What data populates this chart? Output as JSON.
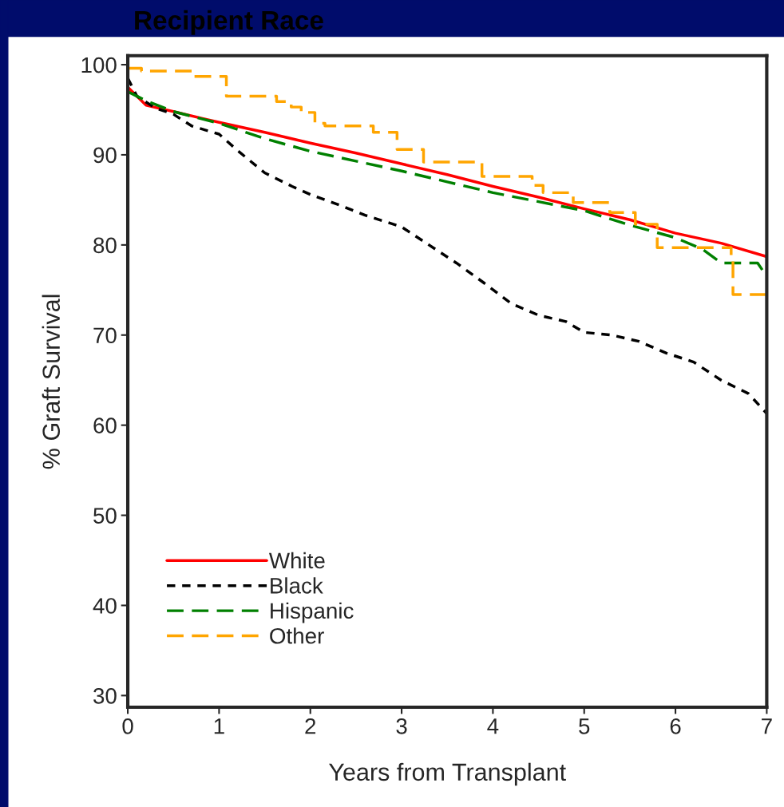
{
  "chart_data": {
    "type": "line",
    "title": "Recipient Race",
    "xlabel": "Years from Transplant",
    "ylabel": "% Graft Survival",
    "xlim": [
      0,
      7
    ],
    "xticks": [
      0,
      1,
      2,
      3,
      4,
      5,
      6,
      7
    ],
    "ylim": [
      28.7,
      101
    ],
    "yticks": [
      30,
      40,
      50,
      60,
      70,
      80,
      90,
      100
    ],
    "grid": false,
    "legend": "bottom left",
    "marker": "none",
    "series": [
      {
        "name": "White",
        "color": "#ff0000",
        "line_style": "solid",
        "x": [
          0,
          0.2,
          0.5,
          1.0,
          1.5,
          2.0,
          2.5,
          3.0,
          3.5,
          4.0,
          4.5,
          5.0,
          5.5,
          6.0,
          6.5,
          7.0
        ],
        "values": [
          97.5,
          95.5,
          94.8,
          93.6,
          92.5,
          91.3,
          90.2,
          89.0,
          87.8,
          86.5,
          85.3,
          84.0,
          82.8,
          81.3,
          80.2,
          78.7
        ]
      },
      {
        "name": "Black",
        "color": "#000000",
        "line_style": "dotted",
        "x": [
          0,
          0.1,
          0.3,
          0.5,
          0.7,
          1.0,
          1.2,
          1.5,
          1.8,
          2.0,
          2.3,
          2.6,
          3.0,
          3.3,
          3.6,
          3.9,
          4.2,
          4.5,
          4.8,
          5.0,
          5.3,
          5.6,
          5.9,
          6.2,
          6.5,
          6.8,
          7.0
        ],
        "values": [
          98.5,
          96.5,
          95.2,
          94.5,
          93.2,
          92.3,
          90.5,
          88.0,
          86.5,
          85.6,
          84.5,
          83.3,
          82.0,
          80.0,
          78.0,
          75.8,
          73.5,
          72.2,
          71.5,
          70.3,
          70.0,
          69.3,
          68.0,
          67.0,
          65.0,
          63.5,
          61.3
        ]
      },
      {
        "name": "Hispanic",
        "color": "#008000",
        "line_style": "dashed",
        "x": [
          0,
          0.2,
          0.5,
          1.0,
          1.5,
          2.0,
          2.5,
          3.0,
          3.5,
          4.0,
          4.5,
          5.0,
          5.5,
          6.0,
          6.3,
          6.5,
          6.9,
          7.0
        ],
        "values": [
          97.0,
          96.0,
          94.8,
          93.5,
          91.8,
          90.4,
          89.3,
          88.2,
          87.0,
          85.8,
          84.8,
          83.8,
          82.2,
          80.8,
          79.5,
          78.0,
          78.0,
          76.5
        ]
      },
      {
        "name": "Other",
        "type": "step",
        "color": "#ffa500",
        "line_style": "dashed",
        "x": [
          0,
          0.15,
          0.7,
          1.08,
          1.63,
          1.79,
          1.9,
          2.05,
          2.16,
          2.69,
          2.95,
          3.24,
          3.88,
          4.43,
          4.55,
          4.88,
          5.28,
          5.56,
          5.8,
          6.61,
          6.63,
          7.0
        ],
        "values": [
          99.6,
          99.3,
          98.7,
          96.5,
          95.9,
          95.3,
          94.7,
          93.5,
          93.2,
          92.5,
          90.6,
          89.2,
          87.6,
          86.6,
          85.8,
          84.7,
          83.6,
          82.3,
          79.7,
          78.2,
          74.5,
          74.5
        ]
      }
    ]
  }
}
